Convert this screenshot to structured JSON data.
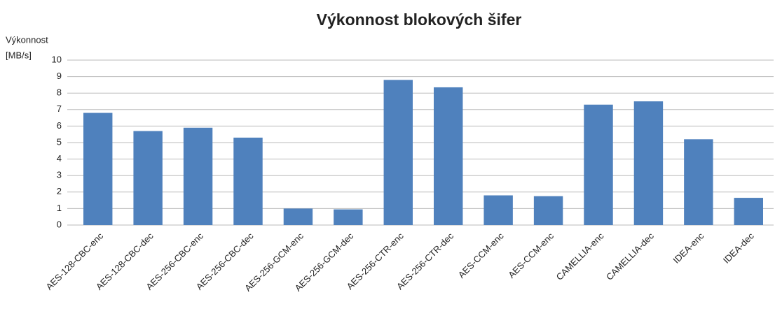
{
  "chart_data": {
    "type": "bar",
    "title": "Výkonnost blokových šifer",
    "ylabel": [
      "Výkonnost",
      "[MB/s]"
    ],
    "categories": [
      "AES-128-CBC-enc",
      "AES-128-CBC-dec",
      "AES-256-CBC-enc",
      "AES-256-CBC-dec",
      "AES-256-GCM-enc",
      "AES-256-GCM-dec",
      "AES-256-CTR-enc",
      "AES-256-CTR-dec",
      "AES-CCM-enc",
      "AES-CCM-enc",
      "CAMELLIA-enc",
      "CAMELLIA-dec",
      "IDEA-enc",
      "IDEA-dec"
    ],
    "values": [
      6.8,
      5.7,
      5.9,
      5.3,
      1.0,
      0.95,
      8.8,
      8.35,
      1.8,
      1.75,
      7.3,
      7.5,
      5.2,
      1.65
    ],
    "color": "#4f81bd",
    "ylim": [
      0,
      10
    ],
    "yticks": [
      0,
      1,
      2,
      3,
      4,
      5,
      6,
      7,
      8,
      9,
      10
    ],
    "grid": true
  }
}
